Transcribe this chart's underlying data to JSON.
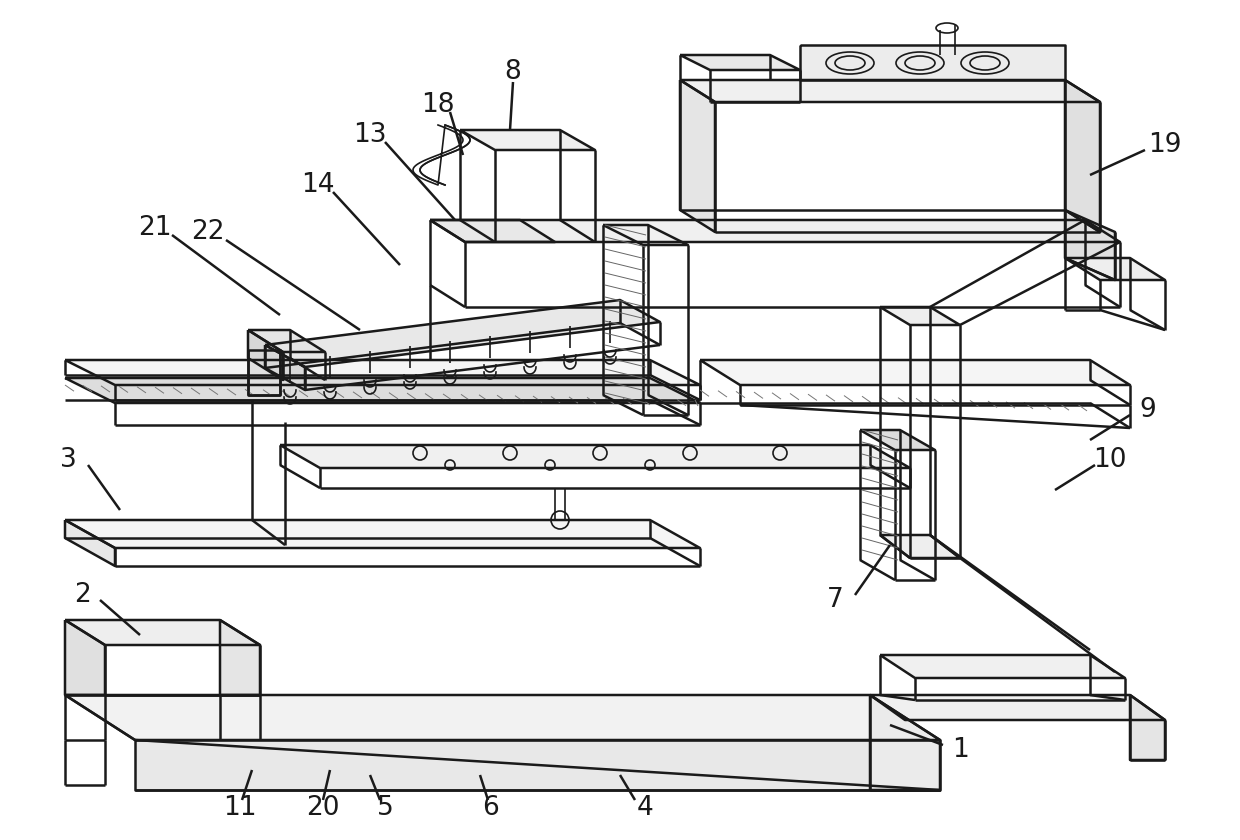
{
  "bg_color": "#ffffff",
  "line_color": "#1a1a1a",
  "font_size": 19,
  "lw": 1.8,
  "lw_thin": 1.2,
  "lw_hatch": 0.7
}
